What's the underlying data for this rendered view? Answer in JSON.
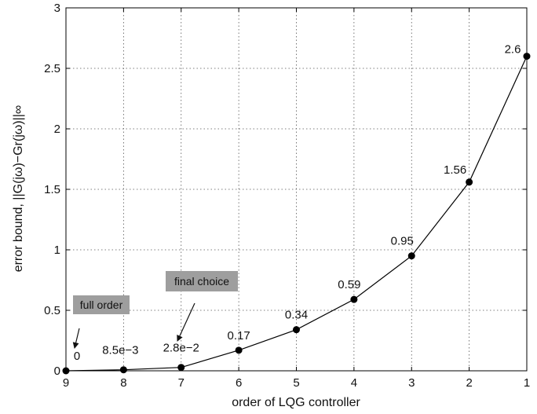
{
  "chart_data": {
    "type": "line",
    "xlabel": "order of LQG controller",
    "ylabel": "error bound, ||G(jω)−Gr(jω)||∞",
    "xlim": [
      9,
      1
    ],
    "ylim": [
      0,
      3
    ],
    "xticks": [
      9,
      8,
      7,
      6,
      5,
      4,
      3,
      2,
      1
    ],
    "yticks": [
      0,
      0.5,
      1,
      1.5,
      2,
      2.5,
      3
    ],
    "ytick_labels": [
      "0",
      "0.5",
      "1",
      "1.5",
      "2",
      "2.5",
      "3"
    ],
    "grid": true,
    "points": [
      {
        "x": 9,
        "y": 0,
        "label": "0"
      },
      {
        "x": 8,
        "y": 0.0085,
        "label": "8.5e−3"
      },
      {
        "x": 7,
        "y": 0.028,
        "label": "2.8e−2"
      },
      {
        "x": 6,
        "y": 0.17,
        "label": "0.17"
      },
      {
        "x": 5,
        "y": 0.34,
        "label": "0.34"
      },
      {
        "x": 4,
        "y": 0.59,
        "label": "0.59"
      },
      {
        "x": 3,
        "y": 0.95,
        "label": "0.95"
      },
      {
        "x": 2,
        "y": 1.56,
        "label": "1.56"
      },
      {
        "x": 1,
        "y": 2.6,
        "label": "2.6"
      }
    ],
    "annotations": [
      {
        "text": "full order",
        "target_x": 9
      },
      {
        "text": "final choice",
        "target_x": 7
      }
    ],
    "colors": {
      "line": "#000000",
      "grid": "#555555",
      "annotation_box": "#9e9e9e"
    }
  }
}
